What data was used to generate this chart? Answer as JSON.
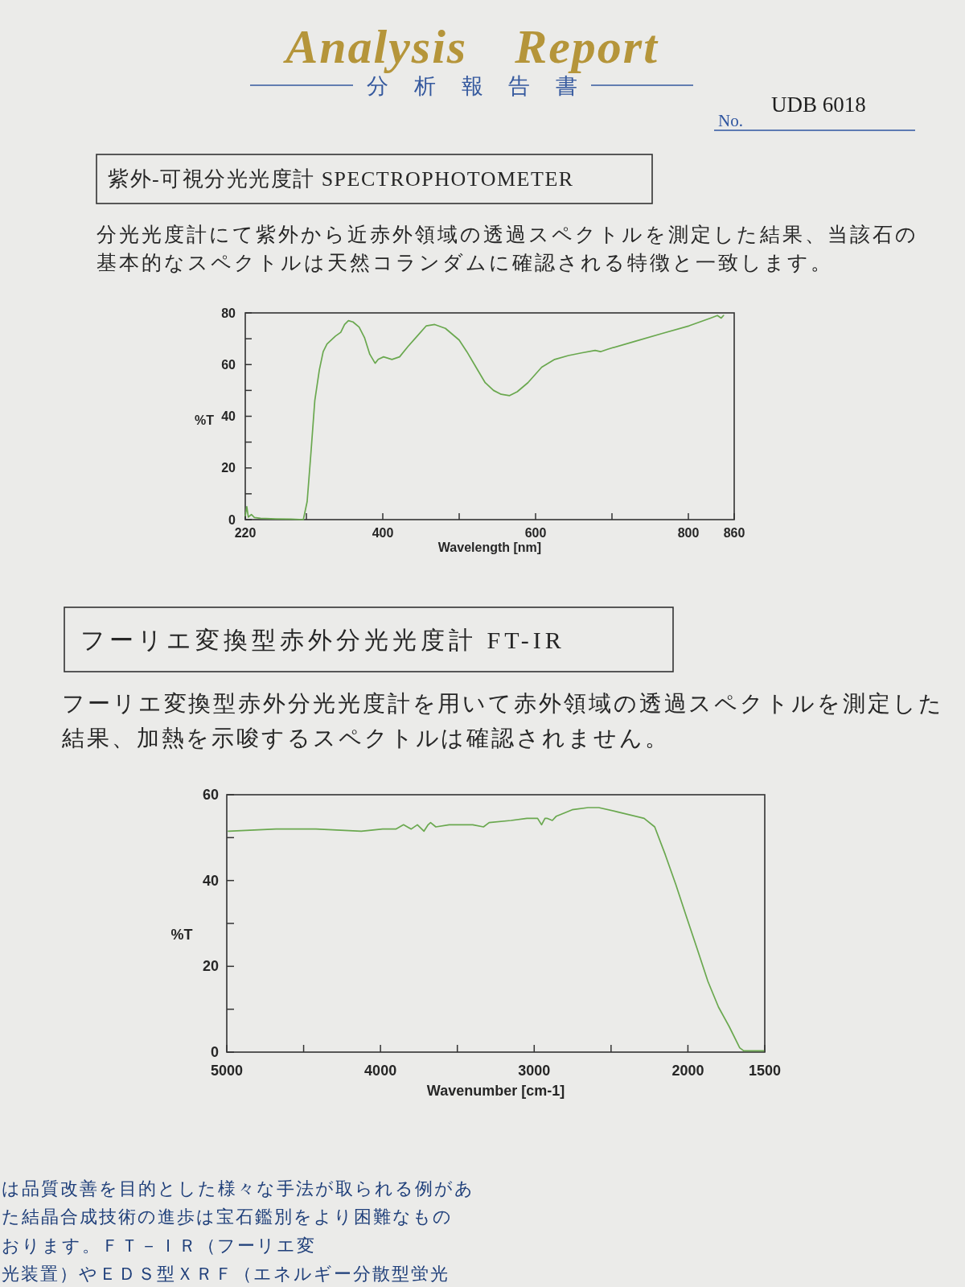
{
  "chart_data": [
    {
      "type": "other",
      "title": "Analysis Report",
      "subtitle": "分析報告書",
      "annotations": [
        "No.",
        "UDB 6018"
      ]
    },
    {
      "type": "line",
      "title": "紫外-可視分光光度計 SPECTROPHOTOMETER",
      "subtitle": "分光光度計にて紫外から近赤外領域の透過スペクトルを測定した結果、当該石の基本的なスペクトルは天然コランダムに確認される特徴と一致します。",
      "xlabel": "Wavelength [nm]",
      "ylabel": "%T",
      "x": [
        220,
        222,
        224,
        228,
        232,
        240,
        260,
        280,
        296,
        301,
        306,
        311,
        317,
        322,
        327,
        338,
        345,
        350,
        355,
        361,
        369,
        376,
        383,
        390,
        394,
        401,
        412,
        422,
        433,
        445,
        457,
        468,
        482,
        500,
        510,
        520,
        534,
        545,
        555,
        566,
        576,
        590,
        608,
        625,
        643,
        660,
        678,
        685,
        695,
        730,
        765,
        801,
        829,
        838,
        843,
        846
      ],
      "series": [
        {
          "color": "#6aa84f",
          "values": [
            1.5,
            5,
            1,
            2,
            0.8,
            0.5,
            0.3,
            0.2,
            0,
            7,
            26,
            46,
            58,
            65,
            68,
            71,
            72.5,
            75.5,
            77,
            76.5,
            74.5,
            70.5,
            64,
            60.5,
            62,
            63,
            62,
            63,
            67,
            71,
            75,
            75.5,
            74,
            69.5,
            65,
            60,
            53,
            50,
            48.5,
            48,
            49.5,
            53,
            59,
            62,
            63.5,
            64.5,
            65.5,
            65,
            66,
            69,
            72,
            75,
            78,
            79,
            78,
            79
          ]
        }
      ],
      "xlim": [
        220,
        860
      ],
      "ylim": [
        0,
        80
      ],
      "xticks": [
        220,
        {
          "value": 300,
          "label": null
        },
        400,
        {
          "value": 500,
          "label": null
        },
        600,
        {
          "value": 700,
          "label": null
        },
        800,
        860
      ],
      "yticks": [
        0,
        {
          "value": 10,
          "label": null
        },
        20,
        {
          "value": 30,
          "label": null
        },
        40,
        {
          "value": 50,
          "label": null
        },
        60,
        {
          "value": 70,
          "label": null
        },
        80
      ]
    },
    {
      "type": "line",
      "title": "フーリエ変換型赤外分光光度計 FT-IR",
      "subtitle": "フーリエ変換型赤外分光光度計を用いて赤外領域の透過スペクトルを測定した結果、加熱を示唆するスペクトルは確認されません。",
      "xlabel": "Wavenumber [cm-1]",
      "ylabel": "%T",
      "x": [
        4990,
        4680,
        4420,
        4125,
        3986,
        3900,
        3850,
        3800,
        3760,
        3717,
        3690,
        3674,
        3640,
        3553,
        3400,
        3330,
        3293,
        3151,
        3047,
        2978,
        2952,
        2930,
        2917,
        2882,
        2856,
        2753,
        2649,
        2580,
        2458,
        2285,
        2216,
        2147,
        2078,
        2009,
        1939,
        1870,
        1801,
        1732,
        1663,
        1637,
        1593,
        1507
      ],
      "series": [
        {
          "color": "#6aa84f",
          "values": [
            51.5,
            52,
            52,
            51.5,
            52,
            52,
            53,
            52,
            53,
            51.5,
            53,
            53.5,
            52.5,
            53,
            53,
            52.5,
            53.5,
            54,
            54.5,
            54.5,
            53,
            54.5,
            54.5,
            54,
            55,
            56.5,
            57,
            57,
            56,
            54.5,
            52.5,
            46,
            39,
            31.5,
            24,
            16.5,
            10.5,
            6,
            1,
            0.3,
            0.3,
            0.3
          ]
        }
      ],
      "xlim": [
        5000,
        1500
      ],
      "ylim": [
        0,
        60
      ],
      "xticks": [
        5000,
        {
          "value": 4500,
          "label": null
        },
        4000,
        {
          "value": 3500,
          "label": null
        },
        3000,
        {
          "value": 2500,
          "label": null
        },
        2000,
        1500
      ],
      "yticks": [
        0,
        {
          "value": 10,
          "label": null
        },
        20,
        {
          "value": 30,
          "label": null
        },
        40,
        {
          "value": 50,
          "label": null
        },
        60
      ]
    },
    {
      "type": "other",
      "annotations": [
        "は品質改善を目的とした様々な手法が取られる例があ",
        "た結晶合成技術の進歩は宝石鑑別をより困難なもの",
        "おります。ＦＴ－ＩＲ（フーリエ変",
        "光装置）やＥＤＳ型ＸＲＦ（エネルギー分散型蛍光"
      ]
    }
  ]
}
